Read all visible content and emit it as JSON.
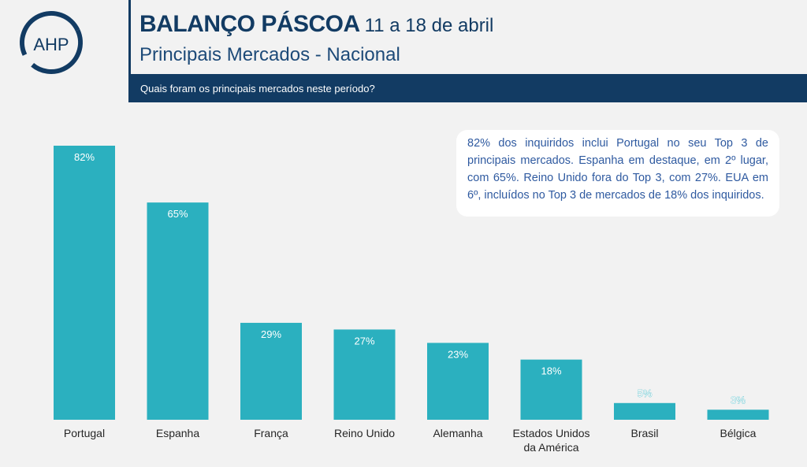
{
  "logo": {
    "text": "AHP"
  },
  "header": {
    "title": "BALANÇO PÁSCOA",
    "dates": "11 a 18 de abril",
    "subtitle": "Principais Mercados - Nacional",
    "question": "Quais foram os principais mercados neste período?"
  },
  "callout": {
    "text": "82% dos inquiridos inclui Portugal no seu Top 3 de principais mercados. Espanha em destaque, em 2º lugar, com 65%. Reino Unido fora do Top 3, com 27%. EUA em 6º, incluídos no Top 3 de mercados de 18% dos inquiridos."
  },
  "colors": {
    "navy": "#123b63",
    "bar": "#2bb0bf",
    "callout_text": "#2f5aa0"
  },
  "chart_data": {
    "type": "bar",
    "categories": [
      "Portugal",
      "Espanha",
      "França",
      "Reino Unido",
      "Alemanha",
      "Estados Unidos da América",
      "Brasil",
      "Bélgica"
    ],
    "values": [
      82,
      65,
      29,
      27,
      23,
      18,
      5,
      3
    ],
    "value_labels": [
      "82%",
      "65%",
      "29%",
      "27%",
      "23%",
      "18%",
      "5%",
      "3%"
    ],
    "ylim": [
      0,
      82
    ],
    "grid": false,
    "legend": "none"
  }
}
